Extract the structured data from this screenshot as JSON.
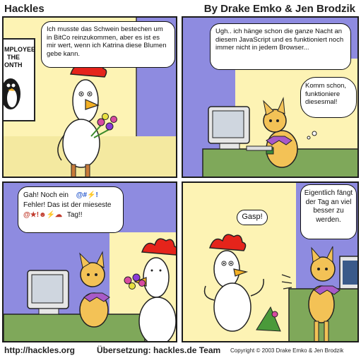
{
  "header": {
    "title": "Hackles",
    "byline": "By Drake Emko & Jen Brodzik"
  },
  "panels": [
    {
      "bubble": "Ich musste das Schwein bestechen um in BitCo reinzukommen, aber es ist es mir wert, wenn ich Katrina diese Blumen gebe kann.",
      "poster": [
        "MPLOYEE",
        "THE",
        "ONTH"
      ]
    },
    {
      "bubble1": "Ugh.. ich hänge schon die ganze Nacht an diesem JavaScript und es funktioniert noch immer nicht in jedem Browser...",
      "bubble2": "Komm schon, funktioniere diesesmal!"
    },
    {
      "bubble_line1": "Gah! Noch ein",
      "bubble_line2": "Fehler! Das ist der mieseste",
      "bubble_line3": "Tag!!",
      "grawlix1": "@#⚡!",
      "grawlix2": "@★!☻⚡☁"
    },
    {
      "bubble1": "Gasp!",
      "bubble2": "Eigentlich fängt der Tag an viel besser zu werden."
    }
  ],
  "footer": {
    "url": "http://hackles.org",
    "translation": "Übersetzung: hackles.de Team",
    "copyright": "Copyright © 2003 Drake Emko & Jen Brodzik"
  },
  "colors": {
    "wall": "#fdf3b4",
    "accent_wall": "#8e8be0",
    "desk": "#7fa85a",
    "cat": "#f3c256",
    "comb": "#e5241b",
    "beak": "#f3b024"
  }
}
